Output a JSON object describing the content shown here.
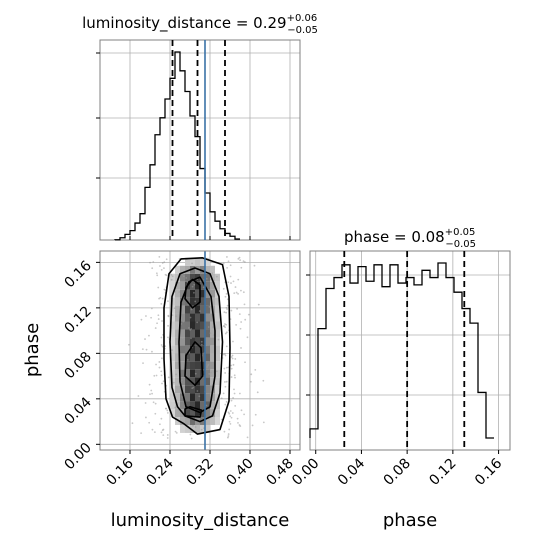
{
  "chart_data": {
    "type": "corner",
    "colors": {
      "truth": "#3a72a6",
      "line": "#000000",
      "grid": "#b0b0b0"
    },
    "grid": true,
    "parameters": [
      "luminosity_distance",
      "phase"
    ],
    "truth": {
      "luminosity_distance": 0.31,
      "phase": null
    },
    "panels": [
      {
        "name": "luminosity_distance",
        "type": "histogram",
        "title_prefix": "luminosity_distance = ",
        "title_value": "0.29",
        "title_plus": "+0.06",
        "title_minus": "−0.05",
        "xlim": [
          0.1,
          0.5
        ],
        "quantiles": [
          0.245,
          0.295,
          0.35
        ],
        "truth": 0.31,
        "bins": {
          "start": 0.13,
          "width": 0.01,
          "values": [
            0.1,
            1.2,
            3,
            5,
            9,
            14,
            28,
            40,
            56,
            65,
            75,
            86,
            100,
            90,
            79,
            66,
            55,
            38,
            25,
            15,
            10,
            6,
            3.5,
            2,
            0.5
          ]
        }
      },
      {
        "name": "phase",
        "type": "histogram",
        "title_prefix": "phase = ",
        "title_value": "0.08",
        "title_plus": "+0.05",
        "title_minus": "−0.05",
        "xlim": [
          -0.005,
          0.17
        ],
        "quantiles": [
          0.025,
          0.08,
          0.13
        ],
        "bins": {
          "start": -0.005,
          "width": 0.007,
          "values": [
            5,
            60,
            82,
            88,
            95,
            85,
            94,
            86,
            95,
            83,
            95,
            85,
            88,
            84,
            92,
            88,
            96,
            88,
            80,
            71,
            63,
            25,
            0
          ]
        }
      },
      {
        "name": "luminosity_distance-vs-phase",
        "type": "2d-density",
        "xlim": [
          0.1,
          0.5
        ],
        "ylim": [
          -0.005,
          0.17
        ],
        "xlabel": "luminosity_distance",
        "ylabel": "phase",
        "truth_x": 0.31,
        "contours": [
          {
            "level": "outer",
            "points": [
              [
                0.268,
                0.018
              ],
              [
                0.295,
                0.009
              ],
              [
                0.34,
                0.013
              ],
              [
                0.358,
                0.038
              ],
              [
                0.36,
                0.085
              ],
              [
                0.358,
                0.13
              ],
              [
                0.345,
                0.158
              ],
              [
                0.305,
                0.164
              ],
              [
                0.262,
                0.163
              ],
              [
                0.238,
                0.15
              ],
              [
                0.228,
                0.12
              ],
              [
                0.228,
                0.075
              ],
              [
                0.232,
                0.04
              ],
              [
                0.245,
                0.024
              ]
            ]
          },
          {
            "level": "middle",
            "points": [
              [
                0.27,
                0.025
              ],
              [
                0.3,
                0.02
              ],
              [
                0.325,
                0.025
              ],
              [
                0.34,
                0.045
              ],
              [
                0.345,
                0.09
              ],
              [
                0.338,
                0.13
              ],
              [
                0.32,
                0.15
              ],
              [
                0.29,
                0.155
              ],
              [
                0.26,
                0.15
              ],
              [
                0.244,
                0.13
              ],
              [
                0.24,
                0.09
              ],
              [
                0.244,
                0.05
              ],
              [
                0.255,
                0.033
              ]
            ]
          },
          {
            "level": "inner",
            "points": [
              [
                0.272,
                0.033
              ],
              [
                0.3,
                0.028
              ],
              [
                0.32,
                0.033
              ],
              [
                0.33,
                0.06
              ],
              [
                0.33,
                0.1
              ],
              [
                0.322,
                0.13
              ],
              [
                0.3,
                0.147
              ],
              [
                0.278,
                0.143
              ],
              [
                0.262,
                0.125
              ],
              [
                0.258,
                0.09
              ],
              [
                0.26,
                0.055
              ]
            ]
          },
          {
            "level": "core-top",
            "points": [
              [
                0.27,
                0.128
              ],
              [
                0.285,
                0.12
              ],
              [
                0.3,
                0.125
              ],
              [
                0.3,
                0.14
              ],
              [
                0.285,
                0.145
              ],
              [
                0.272,
                0.138
              ]
            ]
          },
          {
            "level": "core-mid",
            "points": [
              [
                0.27,
                0.06
              ],
              [
                0.29,
                0.052
              ],
              [
                0.305,
                0.06
              ],
              [
                0.302,
                0.085
              ],
              [
                0.29,
                0.09
              ],
              [
                0.272,
                0.078
              ]
            ]
          },
          {
            "level": "core-low",
            "points": [
              [
                0.27,
                0.025
              ],
              [
                0.3,
                0.024
              ],
              [
                0.303,
                0.03
              ],
              [
                0.28,
                0.033
              ],
              [
                0.27,
                0.031
              ]
            ]
          }
        ]
      }
    ],
    "ticks": {
      "luminosity_distance": [
        "0.16",
        "0.24",
        "0.32",
        "0.40",
        "0.48"
      ],
      "phase": [
        "0.00",
        "0.04",
        "0.08",
        "0.12",
        "0.16"
      ]
    }
  }
}
